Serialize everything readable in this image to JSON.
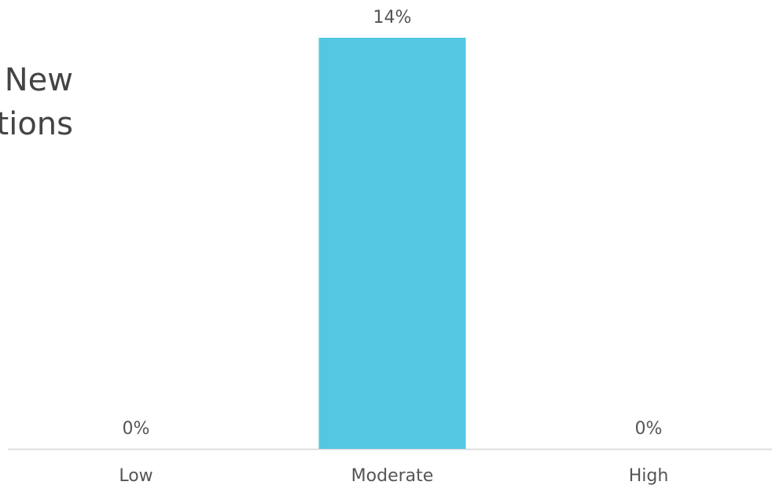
{
  "chart_data": {
    "type": "bar",
    "title": [
      "New",
      "tions"
    ],
    "categories": [
      "Low",
      "Moderate",
      "High"
    ],
    "values": [
      0,
      14,
      0
    ],
    "value_labels": [
      "0%",
      "14%",
      "0%"
    ],
    "color": "#54c8e2"
  }
}
